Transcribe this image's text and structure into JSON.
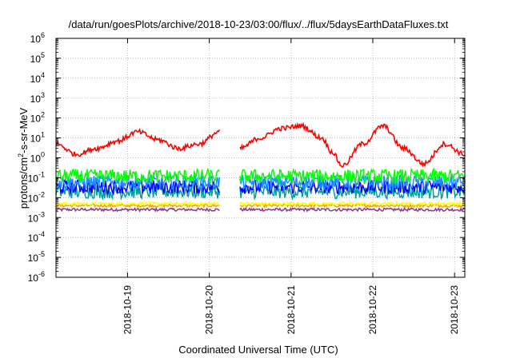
{
  "chart_data": {
    "type": "line",
    "title": "/data/run/goesPlots/archive/2018-10-23/03:00/flux/../flux/5daysEarthDataFluxes.txt",
    "xlabel": "Coordinated Universal Time (UTC)",
    "ylabel": "protons/cm²-s-sr-MeV",
    "ylabel_base": "protons/cm",
    "ylabel_sup": "2",
    "ylabel_rest": "-s-sr-MeV",
    "yscale": "log",
    "ylim": [
      1e-06,
      1000000.0
    ],
    "y_ticks": [
      {
        "base": "10",
        "exp": "-6"
      },
      {
        "base": "10",
        "exp": "-5"
      },
      {
        "base": "10",
        "exp": "-4"
      },
      {
        "base": "10",
        "exp": "-3"
      },
      {
        "base": "10",
        "exp": "-2"
      },
      {
        "base": "10",
        "exp": "-1"
      },
      {
        "base": "10",
        "exp": "0"
      },
      {
        "base": "10",
        "exp": "1"
      },
      {
        "base": "10",
        "exp": "2"
      },
      {
        "base": "10",
        "exp": "3"
      },
      {
        "base": "10",
        "exp": "4"
      },
      {
        "base": "10",
        "exp": "5"
      },
      {
        "base": "10",
        "exp": "6"
      }
    ],
    "xlim": [
      "2018-10-18 03:00",
      "2018-10-23 03:00"
    ],
    "x_ticks": [
      "2018-10-19",
      "2018-10-20",
      "2018-10-21",
      "2018-10-22",
      "2018-10-23"
    ],
    "grid": true,
    "series_gaps": [
      [
        "2018-10-20 03:00",
        "2018-10-20 09:00"
      ]
    ],
    "series": [
      {
        "color": "#ff0000",
        "x": [
          "2018-10-18 03:00",
          "2018-10-18 09:00",
          "2018-10-18 15:00",
          "2018-10-18 21:00",
          "2018-10-19 03:00",
          "2018-10-19 09:00",
          "2018-10-19 15:00",
          "2018-10-19 21:00",
          "2018-10-20 03:00",
          "2018-10-20 09:00",
          "2018-10-20 15:00",
          "2018-10-20 21:00",
          "2018-10-21 03:00",
          "2018-10-21 09:00",
          "2018-10-21 12:00",
          "2018-10-21 15:00",
          "2018-10-21 21:00",
          "2018-10-22 03:00",
          "2018-10-22 09:00",
          "2018-10-22 15:00",
          "2018-10-22 21:00",
          "2018-10-23 03:00"
        ],
        "y": [
          5,
          1.5,
          3,
          7,
          20,
          8,
          3,
          5,
          20,
          3,
          10,
          30,
          40,
          10,
          2,
          0.4,
          5,
          40,
          3,
          0.5,
          5,
          1.5
        ]
      },
      {
        "color": "#00ff00",
        "y_level": 0.12
      },
      {
        "color": "#1e90ff",
        "y_level": 0.06
      },
      {
        "color": "#0000ff",
        "y_level": 0.035
      },
      {
        "color": "#00a0a0",
        "y_level": 0.02
      },
      {
        "color": "#ffff00",
        "y_level": 0.005
      },
      {
        "color": "#ffa000",
        "y_level": 0.004
      },
      {
        "color": "#8b3a8b",
        "y_level": 0.0025
      }
    ]
  }
}
